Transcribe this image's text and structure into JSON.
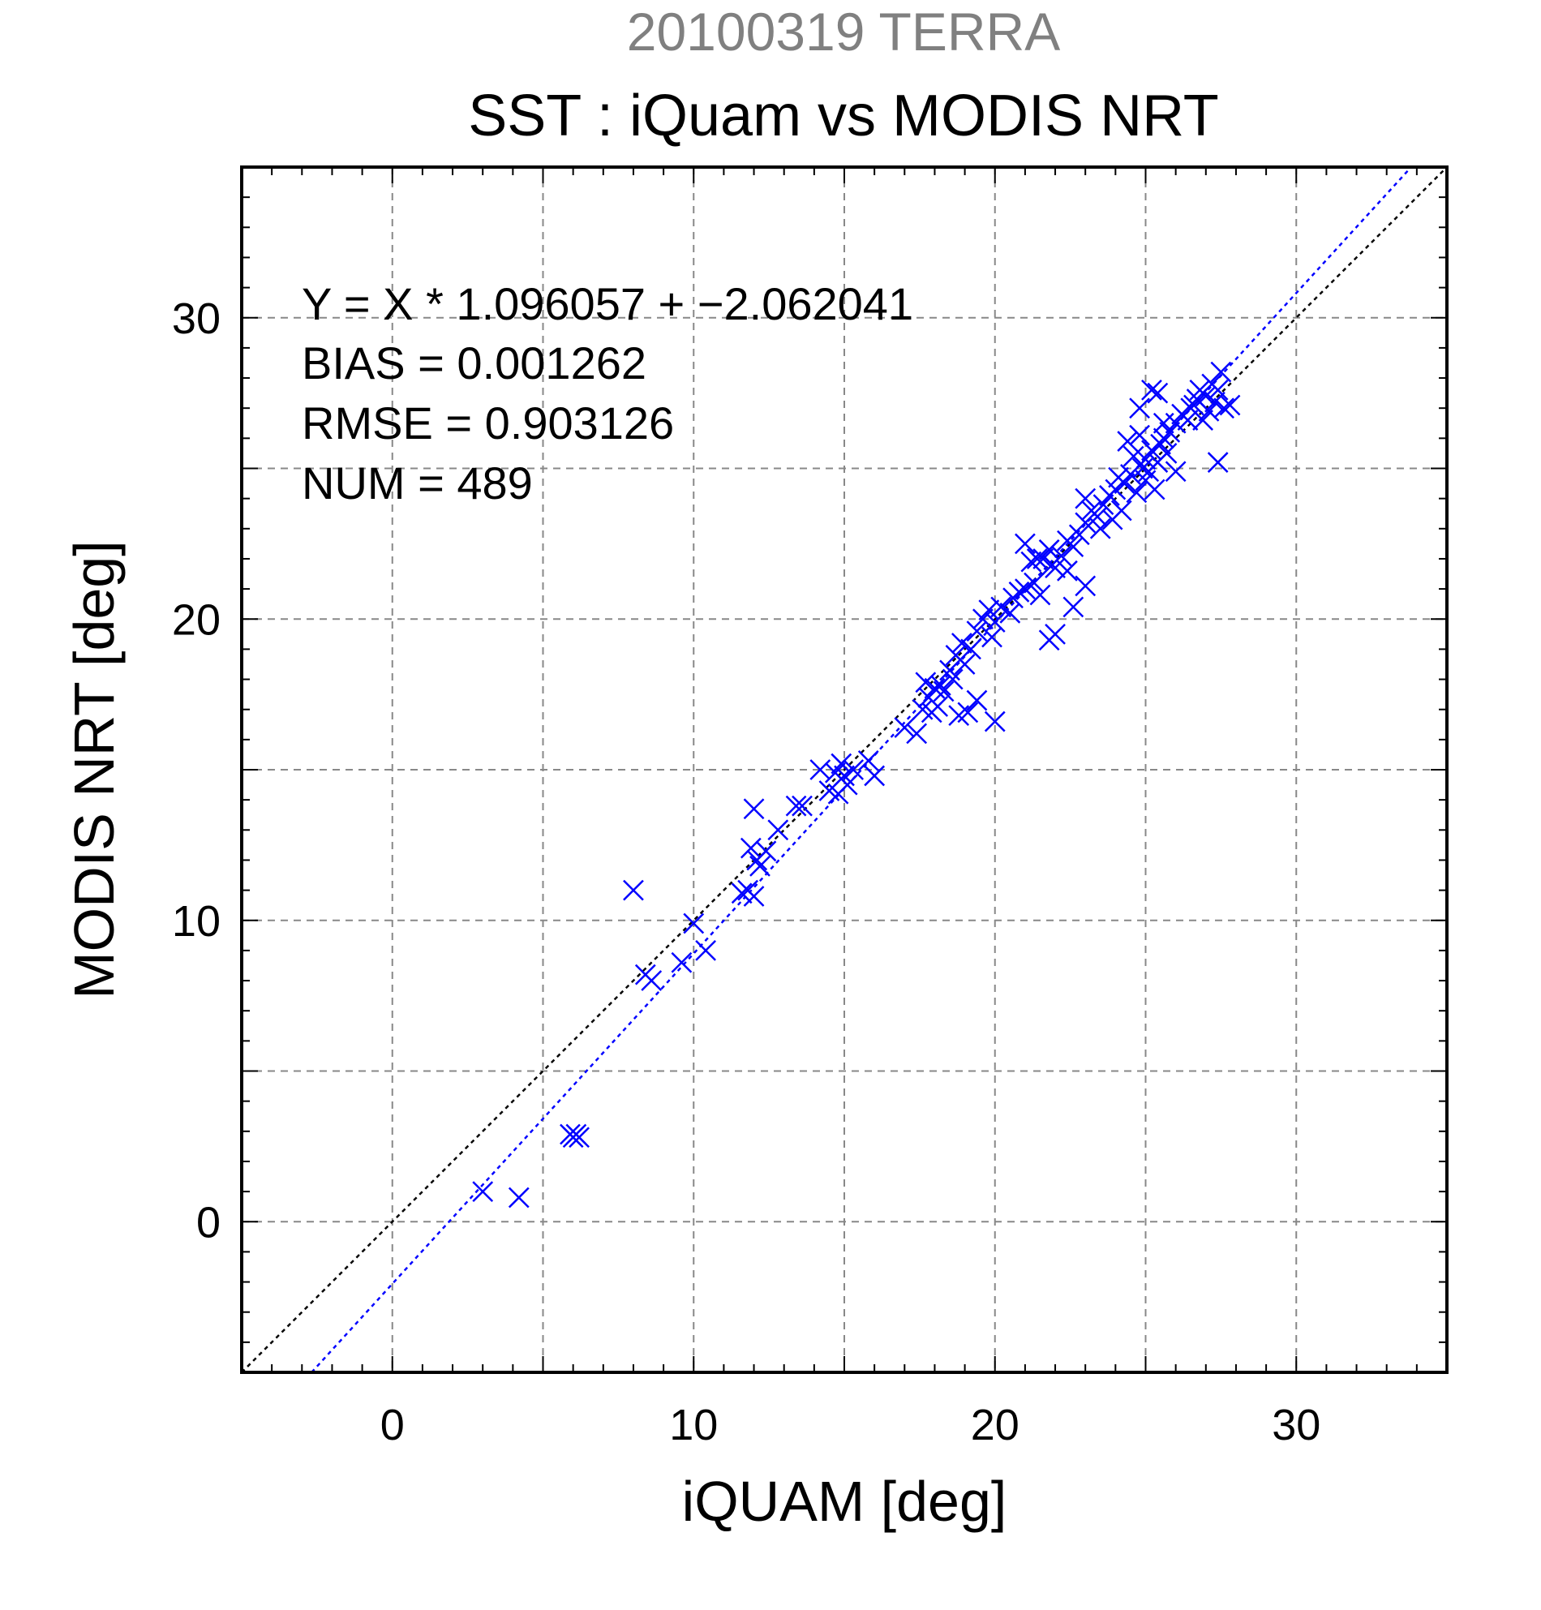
{
  "chart_data": {
    "type": "scatter",
    "title": "20100319 TERRA",
    "subtitle": "SST : iQuam vs MODIS NRT",
    "xlabel": "iQUAM [deg]",
    "ylabel": "MODIS NRT [deg]",
    "xlim": [
      -5,
      35
    ],
    "ylim": [
      -5,
      35
    ],
    "x_ticks": [
      0,
      10,
      20,
      30
    ],
    "y_ticks": [
      0,
      10,
      20,
      30
    ],
    "x_tick_labels": [
      "0",
      "10",
      "20",
      "30"
    ],
    "y_tick_labels": [
      "0",
      "10",
      "20",
      "30"
    ],
    "grid": true,
    "stats": {
      "equation": "Y = X * 1.096057 + −2.062041",
      "bias": "BIAS = 0.001262",
      "rmse": "RMSE = 0.903126",
      "num": "NUM = 489"
    },
    "fit": {
      "slope": 1.096057,
      "intercept": -2.062041
    },
    "colors": {
      "title": "#808080",
      "points": "#0000ff",
      "fit_line": "#0000ff",
      "one_to_one": "#000000",
      "grid": "#888888",
      "text": "#000000"
    },
    "series": [
      {
        "marker": "x",
        "points": [
          [
            3.0,
            1.0
          ],
          [
            4.2,
            0.8
          ],
          [
            5.9,
            2.9
          ],
          [
            6.0,
            2.8
          ],
          [
            6.1,
            2.9
          ],
          [
            6.2,
            2.8
          ],
          [
            8.0,
            11.0
          ],
          [
            8.4,
            8.2
          ],
          [
            8.6,
            8.0
          ],
          [
            9.6,
            8.6
          ],
          [
            10.0,
            9.9
          ],
          [
            10.4,
            9.0
          ],
          [
            11.6,
            10.9
          ],
          [
            11.8,
            11.0
          ],
          [
            12.0,
            10.8
          ],
          [
            11.9,
            12.4
          ],
          [
            12.1,
            12.0
          ],
          [
            12.2,
            11.8
          ],
          [
            12.4,
            12.3
          ],
          [
            12.0,
            13.7
          ],
          [
            12.8,
            13.0
          ],
          [
            13.4,
            13.8
          ],
          [
            13.6,
            13.8
          ],
          [
            14.2,
            15.0
          ],
          [
            14.5,
            14.3
          ],
          [
            14.8,
            14.2
          ],
          [
            14.7,
            14.9
          ],
          [
            14.9,
            15.2
          ],
          [
            15.0,
            14.8
          ],
          [
            15.1,
            14.5
          ],
          [
            15.3,
            15.0
          ],
          [
            15.8,
            15.3
          ],
          [
            16.0,
            14.8
          ],
          [
            17.0,
            16.4
          ],
          [
            17.4,
            16.2
          ],
          [
            17.6,
            17.0
          ],
          [
            17.8,
            17.4
          ],
          [
            18.0,
            17.7
          ],
          [
            18.1,
            17.1
          ],
          [
            18.3,
            17.6
          ],
          [
            17.7,
            17.9
          ],
          [
            18.5,
            18.3
          ],
          [
            18.7,
            18.8
          ],
          [
            18.9,
            19.2
          ],
          [
            19.0,
            18.5
          ],
          [
            19.2,
            19.0
          ],
          [
            19.4,
            19.6
          ],
          [
            18.8,
            16.8
          ],
          [
            19.1,
            16.9
          ],
          [
            19.4,
            17.3
          ],
          [
            20.0,
            16.6
          ],
          [
            19.6,
            20.0
          ],
          [
            19.8,
            20.3
          ],
          [
            20.0,
            19.9
          ],
          [
            20.2,
            20.4
          ],
          [
            20.5,
            20.2
          ],
          [
            20.8,
            20.9
          ],
          [
            21.0,
            21.0
          ],
          [
            21.3,
            21.2
          ],
          [
            21.5,
            20.8
          ],
          [
            21.2,
            21.9
          ],
          [
            21.6,
            22.0
          ],
          [
            21.8,
            22.3
          ],
          [
            22.0,
            21.7
          ],
          [
            22.2,
            22.1
          ],
          [
            22.4,
            22.6
          ],
          [
            22.6,
            22.4
          ],
          [
            21.0,
            22.5
          ],
          [
            21.4,
            22.0
          ],
          [
            21.8,
            19.3
          ],
          [
            22.0,
            19.5
          ],
          [
            22.6,
            20.4
          ],
          [
            23.0,
            21.1
          ],
          [
            22.8,
            22.8
          ],
          [
            23.0,
            23.2
          ],
          [
            23.2,
            23.6
          ],
          [
            23.4,
            23.4
          ],
          [
            23.0,
            24.0
          ],
          [
            23.6,
            23.8
          ],
          [
            23.8,
            24.1
          ],
          [
            24.0,
            24.3
          ],
          [
            24.2,
            23.6
          ],
          [
            24.3,
            24.5
          ],
          [
            24.5,
            24.8
          ],
          [
            24.7,
            24.2
          ],
          [
            24.9,
            25.0
          ],
          [
            25.0,
            25.3
          ],
          [
            25.1,
            24.9
          ],
          [
            25.2,
            25.6
          ],
          [
            25.4,
            25.2
          ],
          [
            25.5,
            25.8
          ],
          [
            25.6,
            26.0
          ],
          [
            25.7,
            25.5
          ],
          [
            25.8,
            26.2
          ],
          [
            26.0,
            26.5
          ],
          [
            26.2,
            26.8
          ],
          [
            26.4,
            26.6
          ],
          [
            26.6,
            27.1
          ],
          [
            26.7,
            27.3
          ],
          [
            26.8,
            27.6
          ],
          [
            27.0,
            27.4
          ],
          [
            27.2,
            27.8
          ],
          [
            27.4,
            27.6
          ],
          [
            27.5,
            28.2
          ],
          [
            27.6,
            27.0
          ],
          [
            27.8,
            27.1
          ],
          [
            27.4,
            25.2
          ],
          [
            24.8,
            27.0
          ],
          [
            25.2,
            27.6
          ],
          [
            25.4,
            27.5
          ],
          [
            25.6,
            26.5
          ],
          [
            24.6,
            25.4
          ],
          [
            24.4,
            25.9
          ],
          [
            24.8,
            26.1
          ],
          [
            25.0,
            24.6
          ],
          [
            25.3,
            24.3
          ],
          [
            26.0,
            24.9
          ],
          [
            26.5,
            27.0
          ],
          [
            26.9,
            26.6
          ],
          [
            27.1,
            26.9
          ],
          [
            27.3,
            27.2
          ],
          [
            24.1,
            24.7
          ],
          [
            23.9,
            23.3
          ],
          [
            23.5,
            23.0
          ],
          [
            22.4,
            21.6
          ],
          [
            21.9,
            21.8
          ],
          [
            20.6,
            20.7
          ],
          [
            19.9,
            19.4
          ],
          [
            18.6,
            18.0
          ],
          [
            18.2,
            17.8
          ],
          [
            17.9,
            16.9
          ]
        ]
      }
    ]
  }
}
